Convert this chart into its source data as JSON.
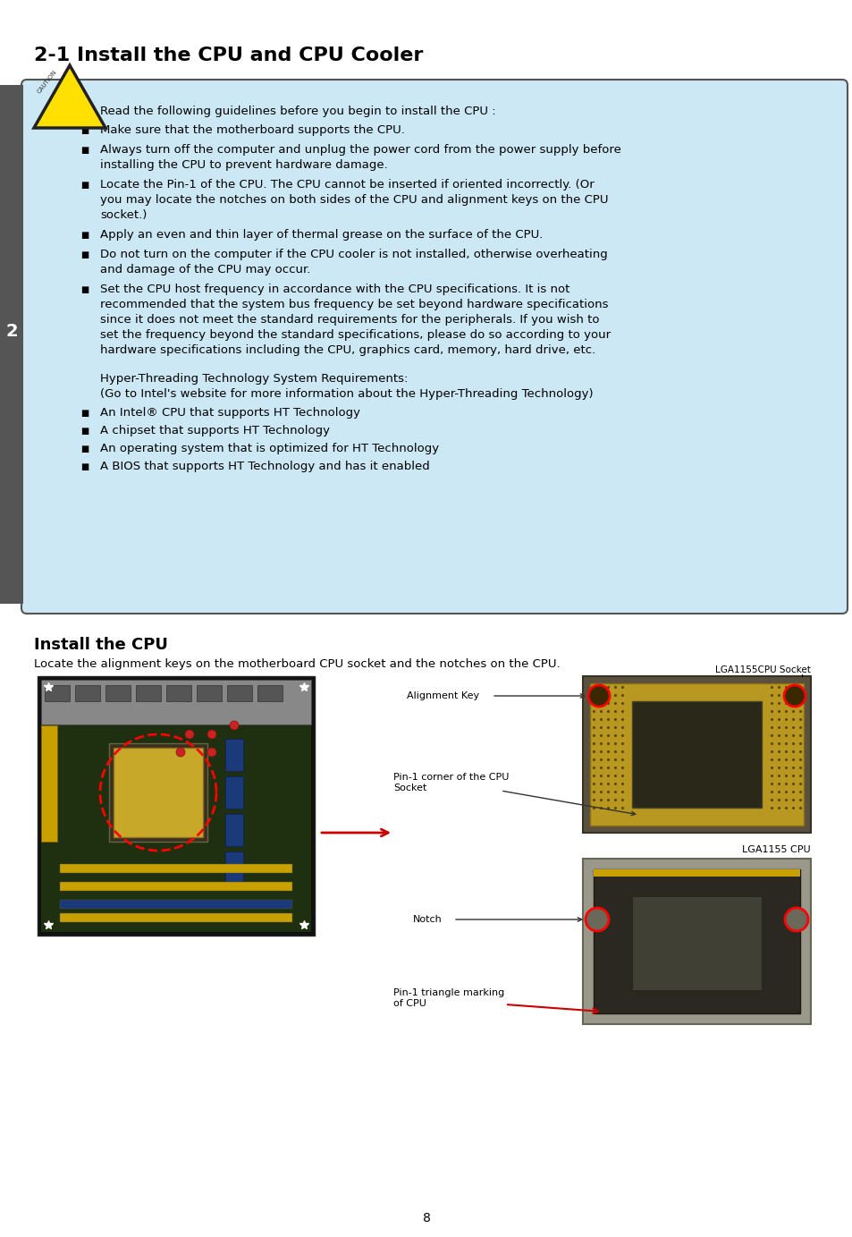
{
  "title": "2-1 Install the CPU and CPU Cooler",
  "page_number": "8",
  "section_number": "2",
  "bg_color": "#ffffff",
  "caution_box_color": "#cce8f5",
  "caution_box_border": "#555555",
  "sidebar_color": "#555555",
  "caution_text_intro": "Read the following guidelines before you begin to install the CPU :",
  "caution_bullets": [
    "Make sure that the motherboard supports the CPU.",
    "Always turn off the computer and unplug the power cord from the power supply before\ninstalling the CPU to prevent hardware damage.",
    "Locate the Pin-1 of the CPU. The CPU cannot be inserted if oriented incorrectly. (Or\nyou may locate the notches on both sides of the CPU and alignment keys on the CPU\nsocket.)",
    "Apply an even and thin layer of thermal grease on the surface of the CPU.",
    "Do not turn on the computer if the CPU cooler is not installed, otherwise overheating\nand damage of the CPU may occur.",
    "Set the CPU host frequency in accordance with the CPU specifications. It is not\nrecommended that the system bus frequency be set beyond hardware specifications\nsince it does not meet the standard requirements for the peripherals. If you wish to\nset the frequency beyond the standard specifications, please do so according to your\nhardware specifications including the CPU, graphics card, memory, hard drive, etc."
  ],
  "hyper_threading_text": [
    "Hyper-Threading Technology System Requirements:",
    "(Go to Intel's website for more information about the Hyper-Threading Technology)"
  ],
  "hyper_threading_bullets": [
    "An Intel® CPU that supports HT Technology",
    "A chipset that supports HT Technology",
    "An operating system that is optimized for HT Technology",
    "A BIOS that supports HT Technology and has it enabled"
  ],
  "install_cpu_title": "Install the CPU",
  "install_cpu_desc": "Locate the alignment keys on the motherboard CPU socket and the notches on the CPU.",
  "lga1155_socket_label": "LGA1155CPU Socket",
  "alignment_key_label": "Alignment Key",
  "pin1_corner_label": "Pin-1 corner of the CPU\nSocket",
  "lga1155_cpu_label": "LGA1155 CPU",
  "notch_label": "Notch",
  "pin1_triangle_label": "Pin-1 triangle marking\nof CPU"
}
